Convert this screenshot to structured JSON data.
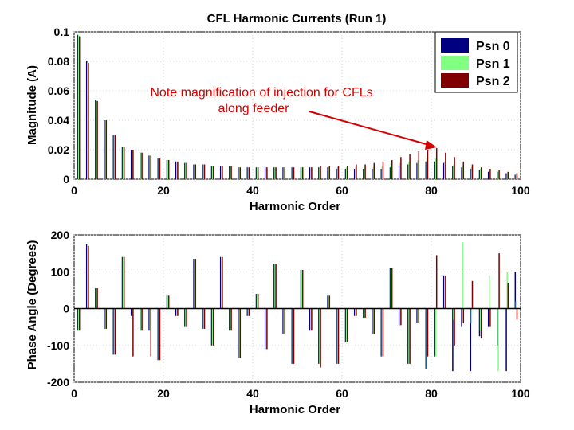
{
  "chart_data": [
    {
      "type": "bar",
      "title": "CFL Harmonic Currents (Run 1)",
      "xlabel": "Harmonic Order",
      "ylabel": "Magnitude (A)",
      "xlim": [
        0,
        100
      ],
      "ylim": [
        0,
        0.1
      ],
      "xticks": [
        "0",
        "20",
        "40",
        "60",
        "80",
        "100"
      ],
      "yticks": [
        "0",
        "0.02",
        "0.04",
        "0.06",
        "0.08",
        "0.1"
      ],
      "categories": [
        1,
        3,
        5,
        7,
        9,
        11,
        13,
        15,
        17,
        19,
        21,
        23,
        25,
        27,
        29,
        31,
        33,
        35,
        37,
        39,
        41,
        43,
        45,
        47,
        49,
        51,
        53,
        55,
        57,
        59,
        61,
        63,
        65,
        67,
        69,
        71,
        73,
        75,
        77,
        79,
        81,
        83,
        85,
        87,
        89,
        91,
        93,
        95,
        97,
        99
      ],
      "series": [
        {
          "name": "Psn 0",
          "color": "#000080",
          "values": [
            0.098,
            0.08,
            0.054,
            0.04,
            0.03,
            0.022,
            0.02,
            0.018,
            0.016,
            0.014,
            0.013,
            0.012,
            0.011,
            0.01,
            0.01,
            0.009,
            0.009,
            0.009,
            0.008,
            0.008,
            0.008,
            0.008,
            0.008,
            0.008,
            0.008,
            0.008,
            0.008,
            0.008,
            0.008,
            0.007,
            0.007,
            0.007,
            0.007,
            0.007,
            0.007,
            0.008,
            0.009,
            0.01,
            0.011,
            0.012,
            0.012,
            0.011,
            0.009,
            0.008,
            0.007,
            0.006,
            0.005,
            0.005,
            0.004,
            0.003
          ]
        },
        {
          "name": "Psn 1",
          "color": "#80ff80",
          "values": [
            0.098,
            0.079,
            0.054,
            0.04,
            0.03,
            0.022,
            0.02,
            0.018,
            0.016,
            0.014,
            0.013,
            0.012,
            0.011,
            0.01,
            0.01,
            0.009,
            0.009,
            0.009,
            0.008,
            0.008,
            0.008,
            0.008,
            0.008,
            0.008,
            0.008,
            0.008,
            0.008,
            0.008,
            0.008,
            0.008,
            0.008,
            0.008,
            0.008,
            0.008,
            0.009,
            0.01,
            0.011,
            0.012,
            0.013,
            0.014,
            0.014,
            0.012,
            0.01,
            0.009,
            0.008,
            0.007,
            0.006,
            0.005,
            0.004,
            0.004
          ]
        },
        {
          "name": "Psn 2",
          "color": "#800000",
          "values": [
            0.097,
            0.079,
            0.053,
            0.04,
            0.03,
            0.022,
            0.02,
            0.018,
            0.016,
            0.014,
            0.013,
            0.012,
            0.011,
            0.01,
            0.01,
            0.009,
            0.009,
            0.009,
            0.008,
            0.008,
            0.008,
            0.008,
            0.008,
            0.008,
            0.008,
            0.008,
            0.008,
            0.009,
            0.009,
            0.009,
            0.009,
            0.01,
            0.01,
            0.011,
            0.012,
            0.013,
            0.015,
            0.017,
            0.019,
            0.02,
            0.021,
            0.018,
            0.015,
            0.012,
            0.01,
            0.008,
            0.007,
            0.006,
            0.005,
            0.004
          ]
        }
      ],
      "legend": {
        "position": "top-right",
        "entries": [
          "Psn 0",
          "Psn 1",
          "Psn 2"
        ]
      },
      "annotation": {
        "lines": [
          "Note magnification of injection for CFLs",
          "along feeder"
        ],
        "color": "#d40000",
        "arrow_to": {
          "x": 82,
          "y": 0.021
        }
      }
    },
    {
      "type": "bar",
      "title": "",
      "xlabel": "Harmonic Order",
      "ylabel": "Phase Angle (Degrees)",
      "xlim": [
        0,
        100
      ],
      "ylim": [
        -200,
        200
      ],
      "xticks": [
        "0",
        "20",
        "40",
        "60",
        "80",
        "100"
      ],
      "yticks": [
        "-200",
        "-100",
        "0",
        "100",
        "200"
      ],
      "categories": [
        1,
        3,
        5,
        7,
        9,
        11,
        13,
        15,
        17,
        19,
        21,
        23,
        25,
        27,
        29,
        31,
        33,
        35,
        37,
        39,
        41,
        43,
        45,
        47,
        49,
        51,
        53,
        55,
        57,
        59,
        61,
        63,
        65,
        67,
        69,
        71,
        73,
        75,
        77,
        79,
        81,
        83,
        85,
        87,
        89,
        91,
        93,
        95,
        97,
        99
      ],
      "series": [
        {
          "name": "Psn 0",
          "color": "#000080",
          "values": [
            -60,
            175,
            55,
            -55,
            -125,
            140,
            -20,
            -60,
            -60,
            -140,
            35,
            -20,
            -50,
            135,
            -55,
            -100,
            140,
            -60,
            -135,
            -20,
            40,
            -110,
            120,
            -70,
            -150,
            105,
            -60,
            -150,
            35,
            -150,
            -90,
            -20,
            -25,
            -70,
            -130,
            110,
            -45,
            -150,
            -40,
            -165,
            -130,
            90,
            -170,
            -50,
            -170,
            -75,
            -50,
            -100,
            -170,
            100
          ]
        },
        {
          "name": "Psn 1",
          "color": "#80ff80",
          "values": [
            -60,
            175,
            55,
            -55,
            -125,
            140,
            -20,
            -60,
            -60,
            -140,
            35,
            -20,
            -50,
            135,
            -55,
            -100,
            140,
            -60,
            -135,
            -20,
            40,
            -110,
            120,
            -70,
            -150,
            105,
            -60,
            -150,
            35,
            -150,
            -90,
            -20,
            -25,
            -70,
            -130,
            110,
            -45,
            -150,
            -40,
            -165,
            -130,
            90,
            -30,
            180,
            -40,
            -60,
            90,
            -170,
            100,
            20
          ]
        },
        {
          "name": "Psn 2",
          "color": "#800000",
          "values": [
            -60,
            170,
            55,
            -55,
            -125,
            140,
            -130,
            -60,
            -130,
            -140,
            35,
            -20,
            -50,
            135,
            -55,
            -100,
            140,
            -60,
            -135,
            -20,
            40,
            -110,
            120,
            -70,
            -150,
            105,
            -60,
            -160,
            35,
            -150,
            -90,
            -20,
            -25,
            -70,
            -130,
            110,
            -45,
            -150,
            -40,
            -130,
            145,
            90,
            -100,
            -40,
            75,
            -80,
            -50,
            150,
            70,
            -30
          ]
        }
      ]
    }
  ]
}
